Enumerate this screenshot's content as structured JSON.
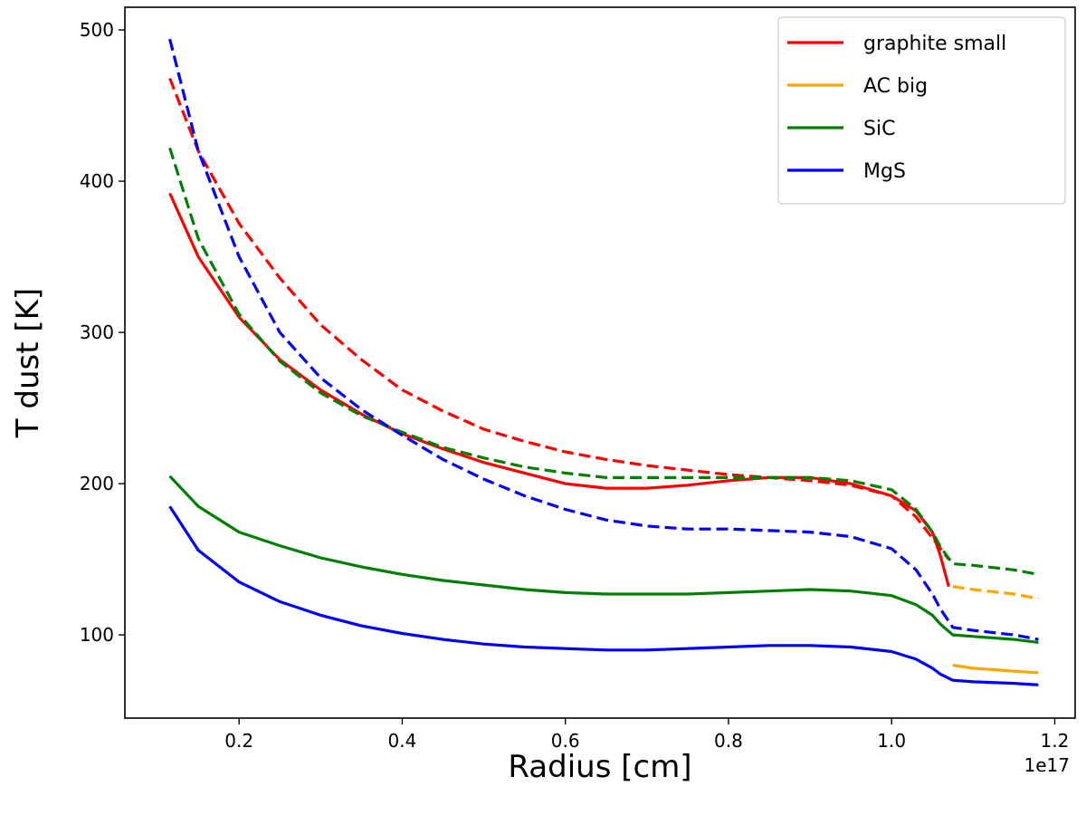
{
  "chart_data": {
    "type": "line",
    "title": "",
    "xlabel": "Radius [cm]",
    "ylabel": "T dust [K]",
    "x_offset_label": "1e17",
    "xlim": [
      0.06,
      1.225
    ],
    "ylim": [
      45,
      515
    ],
    "xticks": [
      0.2,
      0.4,
      0.6,
      0.8,
      1.0,
      1.2
    ],
    "xtick_labels": [
      "0.2",
      "0.4",
      "0.6",
      "0.8",
      "1.0",
      "1.2"
    ],
    "yticks": [
      100,
      200,
      300,
      400,
      500
    ],
    "ytick_labels": [
      "100",
      "200",
      "300",
      "400",
      "500"
    ],
    "legend": {
      "position": "top-right",
      "entries": [
        {
          "label": "graphite small",
          "color": "#ff0000"
        },
        {
          "label": "AC big",
          "color": "#ffa500"
        },
        {
          "label": "SiC",
          "color": "#008000"
        },
        {
          "label": "MgS",
          "color": "#0000ff"
        }
      ]
    },
    "series": [
      {
        "name": "graphite small",
        "style": "solid",
        "color": "#ff0000",
        "x": [
          0.115,
          0.15,
          0.2,
          0.25,
          0.3,
          0.35,
          0.4,
          0.45,
          0.5,
          0.55,
          0.6,
          0.65,
          0.7,
          0.75,
          0.8,
          0.85,
          0.9,
          0.95,
          1.0,
          1.03,
          1.05,
          1.06,
          1.07
        ],
        "y": [
          392,
          350,
          310,
          282,
          262,
          246,
          233,
          223,
          214,
          207,
          200,
          197,
          197,
          199,
          202,
          204,
          204,
          200,
          192,
          182,
          168,
          152,
          132
        ]
      },
      {
        "name": "graphite small (dashed)",
        "style": "dashed",
        "color": "#ff0000",
        "x": [
          0.115,
          0.15,
          0.2,
          0.25,
          0.3,
          0.35,
          0.4,
          0.45,
          0.5,
          0.55,
          0.6,
          0.65,
          0.7,
          0.75,
          0.8,
          0.85,
          0.9,
          0.95,
          1.0,
          1.03,
          1.05,
          1.06,
          1.07
        ],
        "y": [
          468,
          420,
          372,
          336,
          305,
          282,
          262,
          248,
          236,
          228,
          221,
          216,
          212,
          209,
          206,
          204,
          202,
          199,
          192,
          178,
          164,
          157,
          150
        ]
      },
      {
        "name": "AC big",
        "style": "solid",
        "color": "#ffa500",
        "x": [
          1.075,
          1.1,
          1.15,
          1.18
        ],
        "y": [
          80,
          78,
          76,
          75
        ]
      },
      {
        "name": "AC big (dashed)",
        "style": "dashed",
        "color": "#ffa500",
        "x": [
          1.075,
          1.1,
          1.15,
          1.18
        ],
        "y": [
          132,
          130,
          127,
          124
        ]
      },
      {
        "name": "SiC",
        "style": "solid",
        "color": "#008000",
        "x": [
          0.115,
          0.15,
          0.2,
          0.25,
          0.3,
          0.35,
          0.4,
          0.45,
          0.5,
          0.55,
          0.6,
          0.65,
          0.7,
          0.75,
          0.8,
          0.85,
          0.9,
          0.95,
          1.0,
          1.03,
          1.05,
          1.06,
          1.075,
          1.1,
          1.15,
          1.18
        ],
        "y": [
          205,
          185,
          168,
          159,
          151,
          145,
          140,
          136,
          133,
          130,
          128,
          127,
          127,
          127,
          128,
          129,
          130,
          129,
          126,
          120,
          113,
          107,
          100,
          99,
          97,
          95
        ]
      },
      {
        "name": "SiC (dashed)",
        "style": "dashed",
        "color": "#008000",
        "x": [
          0.115,
          0.15,
          0.2,
          0.25,
          0.3,
          0.35,
          0.4,
          0.45,
          0.5,
          0.55,
          0.6,
          0.65,
          0.7,
          0.75,
          0.8,
          0.85,
          0.9,
          0.95,
          1.0,
          1.03,
          1.05,
          1.06,
          1.075,
          1.1,
          1.15,
          1.18
        ],
        "y": [
          422,
          362,
          312,
          281,
          260,
          245,
          234,
          224,
          217,
          211,
          207,
          204,
          204,
          204,
          204,
          204,
          204,
          202,
          196,
          183,
          168,
          158,
          147,
          146,
          143,
          140
        ]
      },
      {
        "name": "MgS",
        "style": "solid",
        "color": "#0000ff",
        "x": [
          0.115,
          0.15,
          0.2,
          0.25,
          0.3,
          0.35,
          0.4,
          0.45,
          0.5,
          0.55,
          0.6,
          0.65,
          0.7,
          0.75,
          0.8,
          0.85,
          0.9,
          0.95,
          1.0,
          1.03,
          1.05,
          1.06,
          1.075,
          1.1,
          1.15,
          1.18
        ],
        "y": [
          185,
          156,
          135,
          122,
          113,
          106,
          101,
          97,
          94,
          92,
          91,
          90,
          90,
          91,
          92,
          93,
          93,
          92,
          89,
          84,
          78,
          74,
          70,
          69,
          68,
          67
        ]
      },
      {
        "name": "MgS (dashed)",
        "style": "dashed",
        "color": "#0000ff",
        "x": [
          0.115,
          0.15,
          0.2,
          0.25,
          0.3,
          0.35,
          0.4,
          0.45,
          0.5,
          0.55,
          0.6,
          0.65,
          0.7,
          0.75,
          0.8,
          0.85,
          0.9,
          0.95,
          1.0,
          1.03,
          1.05,
          1.06,
          1.075,
          1.1,
          1.15,
          1.18
        ],
        "y": [
          494,
          420,
          350,
          300,
          270,
          249,
          232,
          216,
          203,
          192,
          183,
          176,
          172,
          170,
          170,
          169,
          168,
          165,
          157,
          143,
          127,
          117,
          105,
          103,
          100,
          97
        ]
      }
    ]
  }
}
